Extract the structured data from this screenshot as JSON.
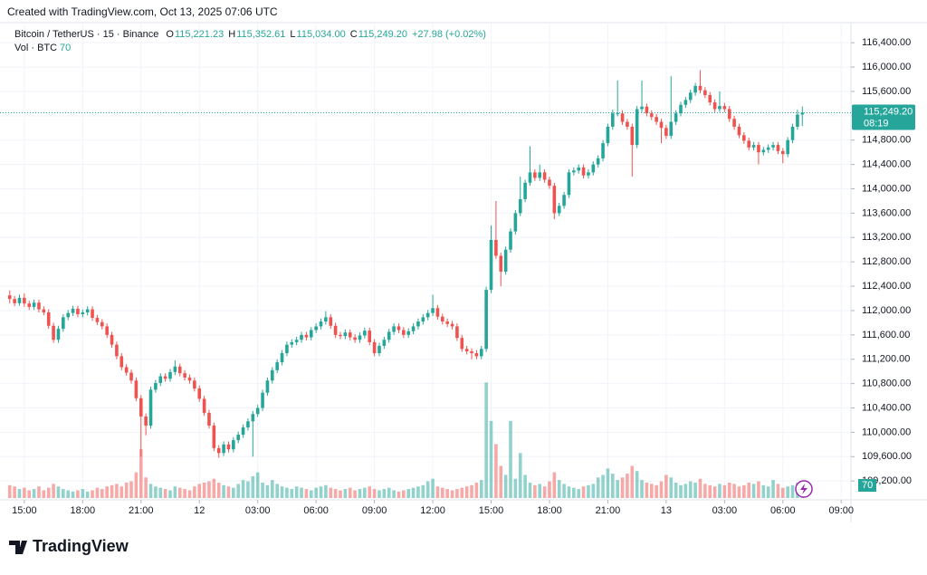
{
  "header": {
    "created": "Created with TradingView.com, Oct 13, 2025 07:06 UTC"
  },
  "footer": {
    "brand": "TradingView"
  },
  "chart_data": {
    "type": "candlestick",
    "symbol": "Bitcoin / TetherUS · 15 · Binance",
    "legend": [
      {
        "key": "O",
        "text": "115,221.23"
      },
      {
        "key": "H",
        "text": "115,352.61"
      },
      {
        "key": "L",
        "text": "115,034.00"
      },
      {
        "key": "C",
        "text": "115,249.20"
      }
    ],
    "change": "+27.98 (+0.02%)",
    "volume_title": "Vol · BTC",
    "volume_last": "70",
    "price_label": "115,249.20",
    "countdown": "08:19",
    "up_color": "#26a69a",
    "down_color": "#ef5350",
    "xlim": [
      -2,
      173
    ],
    "xticks": [
      {
        "value": 3,
        "label": "15:00"
      },
      {
        "value": 15,
        "label": "18:00"
      },
      {
        "value": 27,
        "label": "21:00"
      },
      {
        "value": 39,
        "label": "12"
      },
      {
        "value": 51,
        "label": "03:00"
      },
      {
        "value": 63,
        "label": "06:00"
      },
      {
        "value": 75,
        "label": "09:00"
      },
      {
        "value": 87,
        "label": "12:00"
      },
      {
        "value": 99,
        "label": "15:00"
      },
      {
        "value": 111,
        "label": "18:00"
      },
      {
        "value": 123,
        "label": "21:00"
      },
      {
        "value": 135,
        "label": "13"
      },
      {
        "value": 147,
        "label": "03:00"
      },
      {
        "value": 159,
        "label": "06:00"
      },
      {
        "value": 171,
        "label": "09:00"
      }
    ],
    "ylim": [
      108920,
      116730
    ],
    "yticks": [
      {
        "value": 116400,
        "label": "116,400.00"
      },
      {
        "value": 116000,
        "label": "116,000.00"
      },
      {
        "value": 115600,
        "label": "115,600.00"
      },
      {
        "value": 115200,
        "label": "115,200.00"
      },
      {
        "value": 114800,
        "label": "114,800.00"
      },
      {
        "value": 114400,
        "label": "114,400.00"
      },
      {
        "value": 114000,
        "label": "114,000.00"
      },
      {
        "value": 113600,
        "label": "113,600.00"
      },
      {
        "value": 113200,
        "label": "113,200.00"
      },
      {
        "value": 112800,
        "label": "112,800.00"
      },
      {
        "value": 112400,
        "label": "112,400.00"
      },
      {
        "value": 112000,
        "label": "112,000.00"
      },
      {
        "value": 111600,
        "label": "111,600.00"
      },
      {
        "value": 111200,
        "label": "111,200.00"
      },
      {
        "value": 110800,
        "label": "110,800.00"
      },
      {
        "value": 110400,
        "label": "110,400.00"
      },
      {
        "value": 110000,
        "label": "110,000.00"
      },
      {
        "value": 109600,
        "label": "109,600.00"
      },
      {
        "value": 109200,
        "label": "109,200.00"
      }
    ],
    "vol_ylim": [
      0,
      3700
    ],
    "grid": true,
    "open": [
      112250,
      112190,
      112120,
      112210,
      112115,
      112060,
      112130,
      112020,
      111970,
      111750,
      111520,
      111700,
      111890,
      111960,
      112030,
      111940,
      111970,
      112020,
      111880,
      111810,
      111740,
      111600,
      111440,
      111250,
      111070,
      110980,
      110850,
      110560,
      110260,
      110110,
      110700,
      110810,
      110920,
      110880,
      110990,
      111080,
      110970,
      110900,
      110850,
      110720,
      110550,
      110320,
      110110,
      109740,
      109660,
      109800,
      109720,
      109870,
      109960,
      110080,
      110180,
      110300,
      110400,
      110650,
      110850,
      111020,
      111150,
      111300,
      111440,
      111480,
      111520,
      111600,
      111560,
      111680,
      111740,
      111820,
      111890,
      111750,
      111600,
      111580,
      111640,
      111560,
      111520,
      111590,
      111670,
      111480,
      111300,
      111420,
      111520,
      111650,
      111740,
      111680,
      111600,
      111660,
      111740,
      111820,
      111890,
      111960,
      112040,
      111900,
      111820,
      111780,
      111740,
      111550,
      111370,
      111330,
      111300,
      111250,
      111370,
      112340,
      113160,
      112900,
      112640,
      113000,
      113300,
      113600,
      113830,
      114100,
      114270,
      114180,
      114270,
      114150,
      114050,
      113600,
      113720,
      113900,
      114270,
      114300,
      114350,
      114220,
      114270,
      114400,
      114500,
      114750,
      115020,
      115240,
      115240,
      115100,
      115020,
      114720,
      115310,
      115350,
      115240,
      115180,
      115100,
      115000,
      114870,
      115100,
      115240,
      115380,
      115460,
      115580,
      115690,
      115620,
      115540,
      115420,
      115310,
      115360,
      115310,
      115150,
      115020,
      114880,
      114790,
      114680,
      114720,
      114600,
      114640,
      114680,
      114720,
      114620,
      114570,
      114800,
      115020,
      115221.23
    ],
    "high": [
      112330,
      112240,
      112260,
      112280,
      112160,
      112180,
      112180,
      112070,
      112020,
      111800,
      111750,
      111940,
      112010,
      112080,
      112080,
      112020,
      112070,
      112070,
      111930,
      111860,
      111790,
      111650,
      111490,
      111300,
      111120,
      111030,
      110900,
      110610,
      110310,
      110750,
      110860,
      110970,
      110970,
      111040,
      111180,
      111130,
      111020,
      110950,
      110900,
      110770,
      110600,
      110370,
      110160,
      109790,
      109850,
      109850,
      109920,
      110010,
      110130,
      110230,
      110350,
      110450,
      110700,
      110900,
      111070,
      111200,
      111350,
      111490,
      111530,
      111570,
      111650,
      111650,
      111730,
      111790,
      111870,
      111990,
      111940,
      111800,
      111650,
      111690,
      111690,
      111610,
      111640,
      111720,
      111720,
      111530,
      111470,
      111570,
      111700,
      111790,
      111790,
      111730,
      111710,
      111790,
      111870,
      111940,
      112010,
      112260,
      112090,
      111950,
      111870,
      111830,
      111790,
      111600,
      111420,
      111380,
      111350,
      111420,
      112390,
      113400,
      113800,
      112950,
      113050,
      113350,
      113650,
      114200,
      114150,
      114700,
      114320,
      114400,
      114320,
      114200,
      114100,
      113770,
      113950,
      114320,
      114350,
      114400,
      114400,
      114320,
      114450,
      114550,
      114800,
      115070,
      115300,
      115780,
      115290,
      115150,
      115070,
      115360,
      115780,
      115400,
      115290,
      115230,
      115150,
      115050,
      115850,
      115290,
      115430,
      115510,
      115630,
      115740,
      115950,
      115670,
      115590,
      115470,
      115600,
      115410,
      115360,
      115200,
      115070,
      114930,
      114840,
      114770,
      114770,
      114690,
      114730,
      114770,
      114770,
      114670,
      114850,
      115070,
      115300,
      115352.61
    ],
    "low": [
      112120,
      112070,
      112080,
      112060,
      112010,
      112010,
      111970,
      111920,
      111700,
      111470,
      111470,
      111650,
      111840,
      111910,
      111890,
      111890,
      111920,
      111830,
      111760,
      111690,
      111550,
      111390,
      111200,
      111020,
      110930,
      110800,
      110510,
      109600,
      109950,
      110060,
      110650,
      110760,
      110830,
      110830,
      110940,
      110920,
      110850,
      110800,
      110670,
      110500,
      110270,
      110060,
      109690,
      109580,
      109610,
      109670,
      109670,
      109820,
      109910,
      110030,
      109600,
      110250,
      110350,
      110600,
      110800,
      110970,
      111100,
      111250,
      111390,
      111430,
      111470,
      111510,
      111510,
      111630,
      111690,
      111770,
      111700,
      111550,
      111530,
      111530,
      111510,
      111470,
      111470,
      111540,
      111430,
      111250,
      111250,
      111370,
      111470,
      111600,
      111630,
      111550,
      111550,
      111610,
      111690,
      111770,
      111840,
      111910,
      111850,
      111770,
      111730,
      111690,
      111500,
      111320,
      111280,
      111200,
      111200,
      111200,
      111320,
      112290,
      112850,
      112400,
      112590,
      112950,
      113250,
      113550,
      113780,
      114050,
      114130,
      114130,
      114100,
      114000,
      113500,
      113550,
      113670,
      113850,
      114220,
      114250,
      114170,
      114170,
      114220,
      114350,
      114450,
      114700,
      114970,
      115190,
      115050,
      114970,
      114200,
      114670,
      115260,
      115190,
      115130,
      115050,
      114750,
      114820,
      114820,
      115050,
      115190,
      115330,
      115410,
      115530,
      115570,
      115490,
      115370,
      115260,
      115260,
      115260,
      115100,
      114970,
      114830,
      114740,
      114630,
      114630,
      114400,
      114550,
      114590,
      114630,
      114570,
      114420,
      114520,
      114750,
      114970,
      115034
    ],
    "close": [
      112190,
      112120,
      112210,
      112115,
      112060,
      112130,
      112020,
      111970,
      111750,
      111520,
      111700,
      111890,
      111960,
      112030,
      111940,
      111970,
      112020,
      111880,
      111810,
      111740,
      111600,
      111440,
      111250,
      111070,
      110980,
      110850,
      110560,
      110260,
      110110,
      110700,
      110810,
      110920,
      110880,
      110990,
      111080,
      110970,
      110900,
      110850,
      110720,
      110550,
      110320,
      110110,
      109740,
      109660,
      109800,
      109720,
      109870,
      109960,
      110080,
      110180,
      110300,
      110400,
      110650,
      110850,
      111020,
      111150,
      111300,
      111440,
      111480,
      111520,
      111600,
      111560,
      111680,
      111740,
      111820,
      111890,
      111750,
      111600,
      111580,
      111640,
      111560,
      111520,
      111590,
      111670,
      111480,
      111300,
      111420,
      111520,
      111650,
      111740,
      111680,
      111600,
      111660,
      111740,
      111820,
      111890,
      111960,
      112040,
      111900,
      111820,
      111780,
      111740,
      111550,
      111370,
      111330,
      111300,
      111250,
      111370,
      112340,
      113160,
      112900,
      112640,
      113000,
      113300,
      113600,
      113830,
      114100,
      114270,
      114180,
      114270,
      114150,
      114050,
      113600,
      113720,
      113900,
      114270,
      114300,
      114350,
      114220,
      114270,
      114400,
      114500,
      114750,
      115020,
      115240,
      115240,
      115100,
      115020,
      114720,
      115310,
      115350,
      115240,
      115180,
      115100,
      115000,
      114870,
      115100,
      115240,
      115380,
      115460,
      115580,
      115690,
      115620,
      115540,
      115420,
      115310,
      115360,
      115310,
      115150,
      115020,
      114880,
      114790,
      114680,
      114720,
      114600,
      114640,
      114680,
      114720,
      114620,
      114570,
      114800,
      115020,
      115221.22,
      115249.2
    ],
    "volume": [
      100,
      90,
      70,
      80,
      60,
      70,
      90,
      60,
      80,
      110,
      90,
      70,
      60,
      50,
      60,
      70,
      50,
      60,
      80,
      70,
      90,
      100,
      110,
      90,
      120,
      130,
      200,
      380,
      160,
      110,
      90,
      80,
      70,
      60,
      90,
      80,
      70,
      60,
      90,
      110,
      120,
      130,
      150,
      120,
      100,
      90,
      80,
      110,
      140,
      130,
      170,
      200,
      120,
      100,
      140,
      110,
      90,
      80,
      70,
      90,
      80,
      70,
      60,
      80,
      90,
      100,
      80,
      70,
      60,
      70,
      80,
      60,
      70,
      80,
      90,
      70,
      60,
      70,
      80,
      60,
      50,
      60,
      70,
      80,
      90,
      100,
      130,
      150,
      90,
      80,
      70,
      60,
      70,
      80,
      90,
      100,
      120,
      140,
      900,
      600,
      420,
      250,
      180,
      600,
      150,
      350,
      180,
      120,
      100,
      110,
      90,
      130,
      200,
      140,
      110,
      90,
      80,
      70,
      90,
      100,
      110,
      160,
      180,
      230,
      190,
      140,
      160,
      190,
      250,
      210,
      140,
      120,
      110,
      100,
      130,
      180,
      160,
      120,
      100,
      110,
      130,
      120,
      150,
      110,
      100,
      90,
      110,
      100,
      120,
      110,
      90,
      100,
      120,
      110,
      130,
      100,
      90,
      140,
      110,
      80,
      90,
      100,
      120,
      70
    ]
  }
}
